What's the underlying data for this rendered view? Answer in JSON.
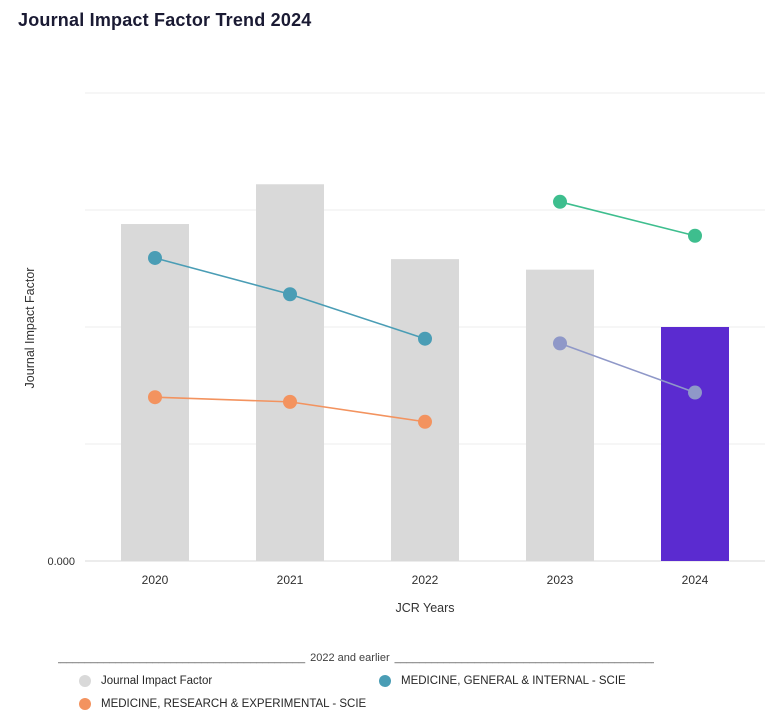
{
  "title": "Journal Impact Factor Trend 2024",
  "chart_data": {
    "type": "bar+line",
    "title": "Journal Impact Factor Trend 2024",
    "xlabel": "JCR Years",
    "ylabel": "Journal Impact Factor",
    "categories": [
      "2020",
      "2021",
      "2022",
      "2023",
      "2024"
    ],
    "y_axis": {
      "visible_tick_labels": [
        "0.000"
      ],
      "min": 0,
      "max": 4,
      "gridline_step": 1,
      "grid": true,
      "note": "only the 0.000 tick is labeled; series values estimated from gridlines"
    },
    "bar_series": {
      "name": "Journal Impact Factor",
      "values": [
        2.88,
        3.22,
        2.58,
        2.49,
        2.0
      ],
      "color": "#d9d9d9",
      "highlight_index": 4,
      "highlight_color": "#5b2bd0"
    },
    "line_series": [
      {
        "legend_label": "MEDICINE, GENERAL & INTERNAL - SCIE",
        "color": "#4a9db5",
        "categories": [
          "2020",
          "2021",
          "2022"
        ],
        "values": [
          2.59,
          2.28,
          1.9
        ]
      },
      {
        "legend_label": "MEDICINE, RESEARCH & EXPERIMENTAL - SCIE",
        "color": "#f3935f",
        "categories": [
          "2020",
          "2021",
          "2022"
        ],
        "values": [
          1.4,
          1.36,
          1.19
        ]
      },
      {
        "legend_label": "",
        "color": "#3ebe8e",
        "categories": [
          "2023",
          "2024"
        ],
        "values": [
          3.07,
          2.78
        ]
      },
      {
        "legend_label": "",
        "color": "#8f98c8",
        "categories": [
          "2023",
          "2024"
        ],
        "values": [
          1.86,
          1.44
        ]
      }
    ],
    "legend_position": "bottom"
  },
  "legend": {
    "group_label": "2022 and earlier",
    "left_dashes": "___________________________________________",
    "right_dashes": "_____________________________________________",
    "items": [
      {
        "label": "Journal Impact Factor",
        "color": "#d9d9d9"
      },
      {
        "label": "MEDICINE, GENERAL & INTERNAL - SCIE",
        "color": "#4a9db5"
      },
      {
        "label": "MEDICINE, RESEARCH & EXPERIMENTAL - SCIE",
        "color": "#f3935f"
      }
    ]
  },
  "colors": {
    "title_text": "#1a1a33",
    "axis_text": "#333333",
    "tick_text": "#2f2f2f",
    "gridline": "#ededed",
    "zero_line": "#d8d8d8",
    "background": "#ffffff"
  }
}
